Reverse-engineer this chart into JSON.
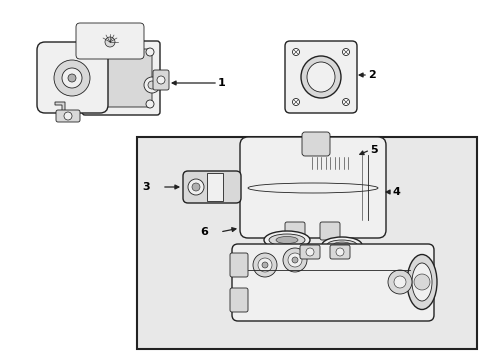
{
  "background_color": "#ffffff",
  "line_color": "#222222",
  "fill_white": "#ffffff",
  "fill_light": "#f0f0f0",
  "fill_medium": "#d8d8d8",
  "fill_dark": "#b0b0b0",
  "fill_box": "#e8e8e8",
  "label_color": "#000000",
  "figsize": [
    4.89,
    3.6
  ],
  "dpi": 100
}
